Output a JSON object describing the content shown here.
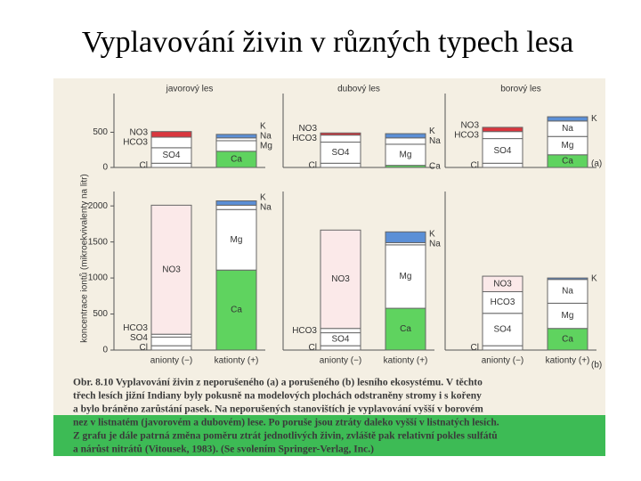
{
  "title": "Vyplavování živin v různých typech lesa",
  "figure": {
    "y_axis_label": "koncentrace iontů (mikroekvivalenty na litr)",
    "panel_labels": [
      "(a)",
      "(b)"
    ]
  },
  "chart_data": [
    {
      "type": "bar",
      "stacked": true,
      "title": "javorový les",
      "ylim": [
        0,
        1050
      ],
      "yticks": [
        0,
        500
      ],
      "series": [
        {
          "name": "Cl",
          "color": "#ffffff",
          "values": [
            60,
            null
          ]
        },
        {
          "name": "SO4",
          "color": "#ffffff",
          "values": [
            220,
            null
          ]
        },
        {
          "name": "HCO3",
          "color": "#ffffff",
          "values": [
            150,
            null
          ]
        },
        {
          "name": "NO3",
          "color": "#d9363e",
          "values": [
            80,
            null
          ]
        },
        {
          "name": "Ca",
          "color": "#5fd35f",
          "values": [
            null,
            230
          ]
        },
        {
          "name": "Mg",
          "color": "#ffffff",
          "values": [
            null,
            150
          ]
        },
        {
          "name": "Na",
          "color": "#ffffff",
          "values": [
            null,
            40
          ]
        },
        {
          "name": "K",
          "color": "#5b8fd6",
          "values": [
            null,
            50
          ]
        }
      ]
    },
    {
      "type": "bar",
      "stacked": true,
      "title": "dubový les",
      "ylim": [
        0,
        1050
      ],
      "series": [
        {
          "name": "Cl",
          "color": "#ffffff",
          "values": [
            60,
            null
          ]
        },
        {
          "name": "SO4",
          "color": "#ffffff",
          "values": [
            300,
            null
          ]
        },
        {
          "name": "HCO3",
          "color": "#ffffff",
          "values": [
            100,
            null
          ]
        },
        {
          "name": "NO3",
          "color": "#d9363e",
          "values": [
            30,
            null
          ]
        },
        {
          "name": "Ca",
          "color": "#5fd35f",
          "values": [
            null,
            30
          ]
        },
        {
          "name": "Mg",
          "color": "#ffffff",
          "values": [
            null,
            300
          ]
        },
        {
          "name": "Na",
          "color": "#ffffff",
          "values": [
            null,
            90
          ]
        },
        {
          "name": "K",
          "color": "#5b8fd6",
          "values": [
            null,
            60
          ]
        }
      ]
    },
    {
      "type": "bar",
      "stacked": true,
      "title": "borový les",
      "ylim": [
        0,
        1050
      ],
      "series": [
        {
          "name": "Cl",
          "color": "#ffffff",
          "values": [
            60,
            null
          ]
        },
        {
          "name": "SO4",
          "color": "#ffffff",
          "values": [
            350,
            null
          ]
        },
        {
          "name": "HCO3",
          "color": "#ffffff",
          "values": [
            100,
            null
          ]
        },
        {
          "name": "NO3",
          "color": "#d9363e",
          "values": [
            60,
            null
          ]
        },
        {
          "name": "Ca",
          "color": "#5fd35f",
          "values": [
            null,
            180
          ]
        },
        {
          "name": "Mg",
          "color": "#ffffff",
          "values": [
            null,
            260
          ]
        },
        {
          "name": "Na",
          "color": "#ffffff",
          "values": [
            null,
            220
          ]
        },
        {
          "name": "K",
          "color": "#5b8fd6",
          "values": [
            null,
            60
          ]
        }
      ]
    },
    {
      "type": "bar",
      "stacked": true,
      "ylim": [
        0,
        2200
      ],
      "yticks": [
        0,
        500,
        1000,
        1500,
        2000
      ],
      "categories": [
        "anionty (−)",
        "kationty (+)"
      ],
      "series": [
        {
          "name": "Cl",
          "color": "#ffffff",
          "values": [
            60,
            null
          ]
        },
        {
          "name": "SO4",
          "color": "#ffffff",
          "values": [
            120,
            null
          ]
        },
        {
          "name": "HCO3",
          "color": "#ffffff",
          "values": [
            40,
            null
          ]
        },
        {
          "name": "NO3",
          "color": "#fbe9e9",
          "values": [
            1790,
            null
          ]
        },
        {
          "name": "Ca",
          "color": "#5fd35f",
          "values": [
            null,
            1110
          ]
        },
        {
          "name": "Mg",
          "color": "#ffffff",
          "values": [
            null,
            840
          ]
        },
        {
          "name": "Na",
          "color": "#ffffff",
          "values": [
            null,
            60
          ]
        },
        {
          "name": "K",
          "color": "#5b8fd6",
          "values": [
            null,
            60
          ]
        }
      ]
    },
    {
      "type": "bar",
      "stacked": true,
      "ylim": [
        0,
        2200
      ],
      "categories": [
        "anionty (−)",
        "kationty (+)"
      ],
      "series": [
        {
          "name": "Cl",
          "color": "#ffffff",
          "values": [
            60,
            null
          ]
        },
        {
          "name": "SO4",
          "color": "#ffffff",
          "values": [
            180,
            null
          ]
        },
        {
          "name": "HCO3",
          "color": "#ffffff",
          "values": [
            60,
            null
          ]
        },
        {
          "name": "NO3",
          "color": "#fbe9e9",
          "values": [
            1365,
            null
          ]
        },
        {
          "name": "Ca",
          "color": "#5fd35f",
          "values": [
            null,
            580
          ]
        },
        {
          "name": "Mg",
          "color": "#ffffff",
          "values": [
            null,
            880
          ]
        },
        {
          "name": "Na",
          "color": "#ffffff",
          "values": [
            null,
            30
          ]
        },
        {
          "name": "K",
          "color": "#5b8fd6",
          "values": [
            null,
            150
          ]
        }
      ]
    },
    {
      "type": "bar",
      "stacked": true,
      "ylim": [
        0,
        2200
      ],
      "categories": [
        "anionty (−)",
        "kationty (+)"
      ],
      "series": [
        {
          "name": "Cl",
          "color": "#ffffff",
          "values": [
            60,
            null
          ]
        },
        {
          "name": "SO4",
          "color": "#ffffff",
          "values": [
            450,
            null
          ]
        },
        {
          "name": "HCO3",
          "color": "#ffffff",
          "values": [
            300,
            null
          ]
        },
        {
          "name": "NO3",
          "color": "#fbe9e9",
          "values": [
            215,
            null
          ]
        },
        {
          "name": "Ca",
          "color": "#5fd35f",
          "values": [
            null,
            300
          ]
        },
        {
          "name": "Mg",
          "color": "#ffffff",
          "values": [
            null,
            350
          ]
        },
        {
          "name": "Na",
          "color": "#ffffff",
          "values": [
            null,
            330
          ]
        },
        {
          "name": "K",
          "color": "#5b8fd6",
          "values": [
            null,
            20
          ]
        }
      ]
    }
  ],
  "caption": [
    "Obr. 8.10 Vyplavování živin z neporušeného (a) a porušeného (b) lesního ekosystému. V těchto",
    "třech lesích jižní Indiany byly pokusně na modelových plochách odstraněny stromy i s kořeny",
    "a bylo bráněno zarůstání pasek. Na neporušených stanovištích je vyplavování vyšší v borovém",
    "nez v listnatém (javorovém a dubovém) lese. Po poruše jsou ztráty daleko vyšší v listnatých lesích.",
    "Z grafu je dále patrná změna poměru ztrát jednotlivých živin, zvláště pak relativní pokles sulfátů",
    "a nárůst nitrátů (Vitousek, 1983). (Se svolením Springer-Verlag, Inc.)"
  ]
}
